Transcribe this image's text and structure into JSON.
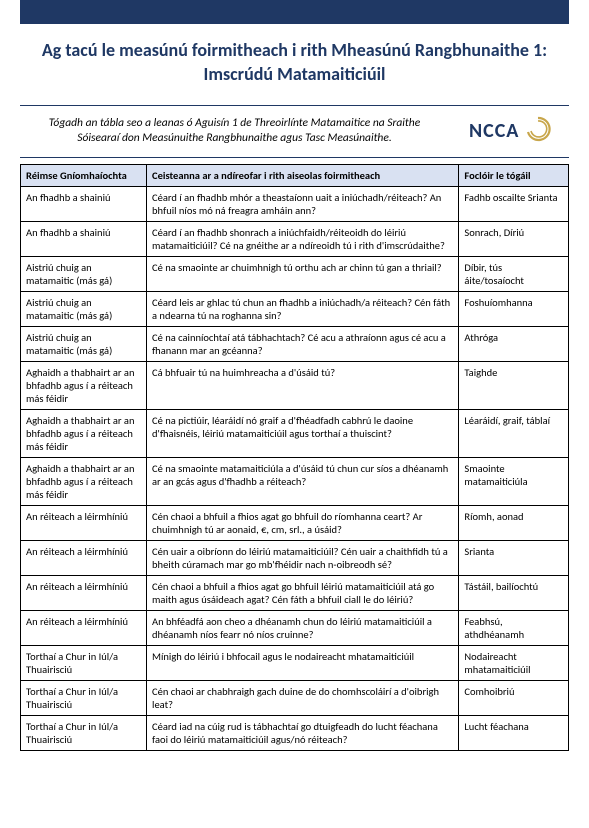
{
  "title": "Ag tacú le measúnú foirmitheach i rith Mheasúnú Rangbhunaithe 1: Imscrúdú Matamaiticiúil",
  "intro": "Tógadh an tábla seo a leanas ó Aguisín 1 de Threoirlínte Matamaitice na Sraithe Sóisearaí don Measúnuithe Rangbhunaithe agus Tasc Measúnaithe.",
  "logo": "NCCA",
  "columns": [
    "Réimse Gníomhaíochta",
    "Ceisteanna ar a ndíreofar i rith aiseolas foirmitheach",
    "Foclóir le tógáil"
  ],
  "rows": [
    {
      "c1": "An fhadhb a shainiú",
      "c2": "Céard í an fhadhb mhór a theastaíonn uait a iniúchadh/réiteach? An bhfuil níos mó ná freagra amháin ann?",
      "c3": "Fadhb oscailte Srianta"
    },
    {
      "c1": "An fhadhb a shainiú",
      "c2": "Céard í an fhadhb shonrach a iniúchfaidh/réiteoidh do léiriú matamaiticiúil? Cé na gnéithe ar a ndíreoidh tú i rith d'imscrúdaithe?",
      "c3": "Sonrach, Díriú"
    },
    {
      "c1": "Aistriú chuig an matamaitic (más gá)",
      "c2": "Cé na smaointe ar chuimhnigh tú orthu ach ar chinn tú gan a thriail?",
      "c3": "Díbir, tús áite/tosaíocht"
    },
    {
      "c1": "Aistriú chuig an matamaitic (más gá)",
      "c2": "Céard leis ar ghlac tú chun an fhadhb a iniúchadh/a réiteach? Cén fáth a ndearna tú na roghanna sin?",
      "c3": "Foshuíomhanna"
    },
    {
      "c1": "Aistriú chuig an matamaitic (más gá)",
      "c2": "Cé na cainníochtaí atá tábhachtach? Cé acu a athraíonn agus cé acu a fhanann mar an gcéanna?",
      "c3": "Athróga"
    },
    {
      "c1": "Aghaidh a thabhairt ar an bhfadhb agus í a réiteach más féidir",
      "c2": "Cá bhfuair tú na huimhreacha a d'úsáid tú?",
      "c3": "Taighde"
    },
    {
      "c1": "Aghaidh a thabhairt ar an bhfadhb agus í a réiteach más féidir",
      "c2": "Cé na pictiúir, léaráidí nó graif a d'fhéadfadh cabhrú le daoine d'fhaisnéis, léiriú matamaiticiúil agus torthaí a thuiscint?",
      "c3": "Léaráidí, graif, táblaí"
    },
    {
      "c1": "Aghaidh a thabhairt ar an bhfadhb agus í a réiteach más féidir",
      "c2": "Cé na smaointe matamaiticiúla a d'úsáid tú chun cur síos a dhéanamh ar an gcás agus d'fhadhb a réiteach?",
      "c3": "Smaointe matamaiticiúla"
    },
    {
      "c1": "An réiteach a léirmhíniú",
      "c2": "Cén chaoi a bhfuil a fhios agat go bhfuil do ríomhanna ceart? Ar chuimhnigh tú ar aonaid, €, cm, srl., a úsáid?",
      "c3": "Ríomh, aonad"
    },
    {
      "c1": "An réiteach a léirmhíniú",
      "c2": "Cén uair a oibríonn do léiriú matamaiticiúil? Cén uair a chaithfidh tú a bheith cúramach mar go mb'fhéidir nach n-oibreodh sé?",
      "c3": "Srianta"
    },
    {
      "c1": "An réiteach a léirmhíniú",
      "c2": "Cén chaoi a bhfuil a fhios agat go bhfuil léiriú matamaiticiúil atá go maith agus úsáideach agat? Cén fáth a bhfuil ciall le do léiriú?",
      "c3": "Tástáil, bailíochtú"
    },
    {
      "c1": "An réiteach a léirmhíniú",
      "c2": "An bhféadfá aon cheo a dhéanamh chun do léiriú matamaiticiúil a dhéanamh níos fearr nó níos cruinne?",
      "c3": "Feabhsú, athdhéanamh"
    },
    {
      "c1": "Torthaí a Chur in Iúl/a Thuairisciú",
      "c2": "Mínigh do léiriú i bhfocail agus le nodaireacht mhatamaiticiúil",
      "c3": "Nodaireacht mhatamaiticiúil"
    },
    {
      "c1": "Torthaí a Chur in Iúl/a Thuairisciú",
      "c2": "Cén chaoi ar chabhraigh gach duine de do chomhscoláirí a d'oibrigh leat?",
      "c3": "Comhoibriú"
    },
    {
      "c1": "Torthaí a Chur in Iúl/a Thuairisciú",
      "c2": "Céard iad na cúig rud is tábhachtaí go dtuigfeadh do lucht féachana faoi do léiriú matamaiticiúil agus/nó réiteach?",
      "c3": "Lucht féachana"
    }
  ]
}
